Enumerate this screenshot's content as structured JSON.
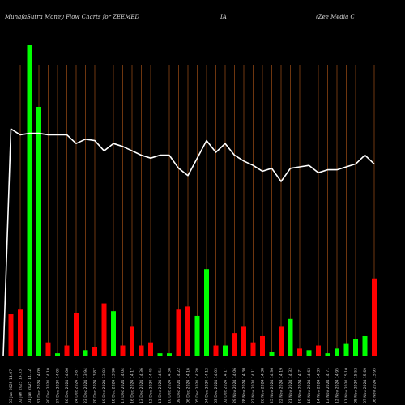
{
  "title": {
    "left": "MunafaSutra  Money Flow  Charts for ZEEMED",
    "middle": "IA",
    "right": "(Zee   Media  C"
  },
  "chart_data": {
    "type": "bar",
    "description_of_series": "Daily money flow volume bars (green = inflow, red = outflow) with an overlaid price line",
    "colors": {
      "up": "#00ff00",
      "down": "#ff0000",
      "line": "#ffffff",
      "grid": "#8b4513",
      "background": "#000000"
    },
    "ylim": [
      0,
      100
    ],
    "categories": [
      "03 Jan 2025 14.07",
      "02 Jan 2025 14.33",
      "01 Jan 2025 14.12",
      "31 Dec 2024 14.09",
      "30 Dec 2024 14.10",
      "27 Dec 2024 14.05",
      "26 Dec 2024 14.06",
      "24 Dec 2024 13.87",
      "23 Dec 2024 13.94",
      "20 Dec 2024 13.87",
      "19 Dec 2024 13.83",
      "18 Dec 2024 13.98",
      "17 Dec 2024 14.04",
      "16 Dec 2024 14.17",
      "13 Dec 2024 14.36",
      "12 Dec 2024 14.45",
      "11 Dec 2024 14.54",
      "10 Dec 2024 14.36",
      "09 Dec 2024 14.22",
      "06 Dec 2024 14.16",
      "05 Dec 2024 14.28",
      "04 Dec 2024 14.12",
      "03 Dec 2024 14.03",
      "02 Dec 2024 14.17",
      "29 Nov 2024 14.06",
      "28 Nov 2024 14.30",
      "27 Nov 2024 14.11",
      "26 Nov 2024 14.38",
      "25 Nov 2024 14.36",
      "22 Nov 2024 14.19",
      "21 Nov 2024 14.32",
      "19 Nov 2024 14.71",
      "18 Nov 2024 14.63",
      "14 Nov 2024 14.39",
      "13 Nov 2024 14.71",
      "12 Nov 2024 14.95",
      "11 Nov 2024 15.10",
      "08 Nov 2024 15.52",
      "07 Nov 2024 15.69",
      "06 Nov 2024 15.95"
    ],
    "volume_values": [
      13.5,
      15,
      100,
      80,
      4.5,
      1,
      3.5,
      14,
      2,
      3,
      17,
      14.5,
      3.5,
      9.5,
      3.5,
      4.5,
      1,
      1,
      15,
      16,
      13,
      28,
      3.5,
      3.5,
      7.5,
      9.5,
      4.5,
      6.5,
      1.5,
      9.5,
      12,
      2.5,
      2,
      3.5,
      1,
      2.5,
      4,
      5.5,
      6.5,
      25
    ],
    "volume_direction": [
      "down",
      "down",
      "up",
      "up",
      "down",
      "up",
      "down",
      "down",
      "up",
      "down",
      "down",
      "up",
      "down",
      "down",
      "down",
      "down",
      "up",
      "up",
      "down",
      "down",
      "up",
      "up",
      "down",
      "up",
      "down",
      "down",
      "down",
      "down",
      "up",
      "down",
      "up",
      "down",
      "up",
      "down",
      "up",
      "up",
      "up",
      "up",
      "up",
      "down"
    ],
    "price_values": [
      78,
      76,
      76.5,
      76.5,
      76,
      76,
      76,
      73,
      74.5,
      74,
      70.5,
      73,
      72,
      70.5,
      69,
      68,
      69,
      69,
      64.5,
      62,
      68,
      74,
      70,
      73,
      69,
      67,
      65.5,
      63.5,
      64.5,
      60,
      64.5,
      65,
      65.5,
      63,
      64,
      64,
      65,
      66,
      69,
      66
    ]
  }
}
